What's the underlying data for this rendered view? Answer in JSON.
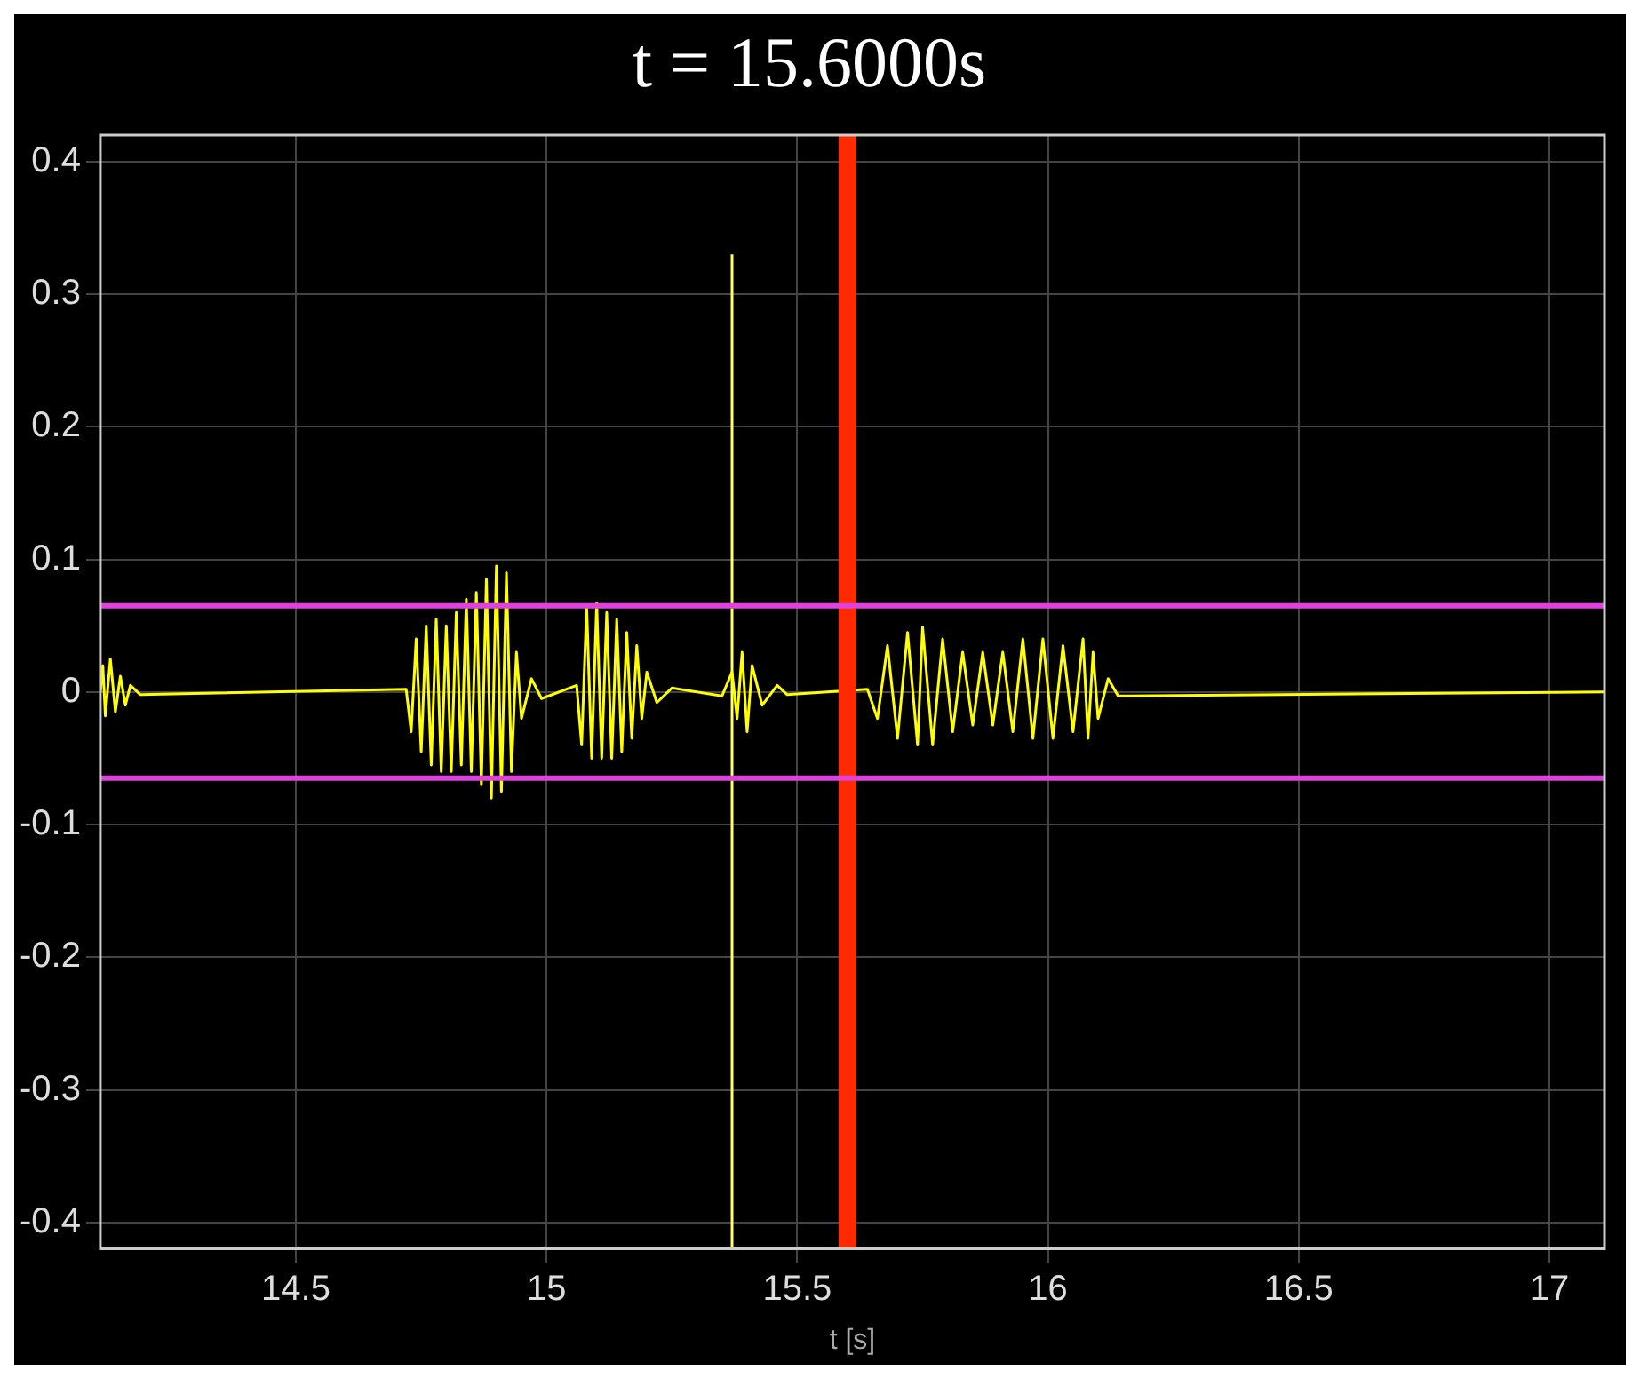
{
  "chart_data": {
    "type": "line",
    "title": "t = 15.6000s",
    "xlabel": "t [s]",
    "xlim": [
      14.11,
      17.11
    ],
    "ylim": [
      -0.42,
      0.42
    ],
    "xticks": [
      14.5,
      15,
      15.5,
      16,
      16.5,
      17
    ],
    "yticks": [
      -0.4,
      -0.3,
      -0.2,
      -0.1,
      0,
      0.1,
      0.2,
      0.3,
      0.4
    ],
    "grid": true,
    "legend": false,
    "marker": "none",
    "ref_lines": [
      {
        "axis": "x",
        "value": 15.6,
        "color": "#ff2a00"
      },
      {
        "axis": "y",
        "value": 0.065,
        "color": "#e040e0"
      },
      {
        "axis": "y",
        "value": -0.065,
        "color": "#e040e0"
      }
    ],
    "series": [
      {
        "color": "#ffff00",
        "x": [
          14.11,
          14.115,
          14.12,
          14.13,
          14.14,
          14.15,
          14.16,
          14.17,
          14.19,
          14.72,
          14.73,
          14.74,
          14.75,
          14.76,
          14.77,
          14.78,
          14.79,
          14.8,
          14.81,
          14.82,
          14.83,
          14.84,
          14.85,
          14.86,
          14.87,
          14.88,
          14.89,
          14.9,
          14.91,
          14.92,
          14.93,
          14.94,
          14.95,
          14.97,
          14.99,
          15.06,
          15.07,
          15.08,
          15.09,
          15.1,
          15.11,
          15.12,
          15.13,
          15.14,
          15.15,
          15.16,
          15.17,
          15.18,
          15.19,
          15.2,
          15.22,
          15.25,
          15.35,
          15.37,
          15.38,
          15.39,
          15.4,
          15.41,
          15.43,
          15.46,
          15.48,
          15.64,
          15.66,
          15.68,
          15.7,
          15.72,
          15.74,
          15.75,
          15.77,
          15.79,
          15.81,
          15.83,
          15.85,
          15.87,
          15.89,
          15.91,
          15.93,
          15.95,
          15.97,
          15.99,
          16.01,
          16.03,
          16.05,
          16.07,
          16.08,
          16.09,
          16.1,
          16.12,
          16.14,
          17.11
        ],
        "values": [
          0,
          0.02,
          -0.018,
          0.025,
          -0.015,
          0.012,
          -0.01,
          0.005,
          -0.002,
          0.002,
          -0.03,
          0.04,
          -0.045,
          0.05,
          -0.055,
          0.055,
          -0.06,
          0.05,
          -0.06,
          0.06,
          -0.055,
          0.07,
          -0.06,
          0.075,
          -0.07,
          0.085,
          -0.08,
          0.095,
          -0.075,
          0.09,
          -0.06,
          0.03,
          -0.02,
          0.01,
          -0.005,
          0.005,
          -0.04,
          0.065,
          -0.05,
          0.067,
          -0.05,
          0.06,
          -0.05,
          0.055,
          -0.045,
          0.045,
          -0.035,
          0.035,
          -0.02,
          0.015,
          -0.008,
          0.003,
          -0.003,
          0.015,
          -0.02,
          0.03,
          -0.03,
          0.02,
          -0.01,
          0.005,
          -0.002,
          0.002,
          -0.02,
          0.035,
          -0.035,
          0.045,
          -0.04,
          0.049,
          -0.04,
          0.04,
          -0.03,
          0.03,
          -0.025,
          0.03,
          -0.025,
          0.03,
          -0.03,
          0.04,
          -0.035,
          0.04,
          -0.035,
          0.035,
          -0.03,
          0.04,
          -0.035,
          0.03,
          -0.02,
          0.01,
          -0.003,
          0
        ]
      },
      {
        "color": "#ffff66",
        "x": [
          15.37,
          15.37
        ],
        "values": [
          -0.42,
          0.33
        ]
      }
    ]
  }
}
